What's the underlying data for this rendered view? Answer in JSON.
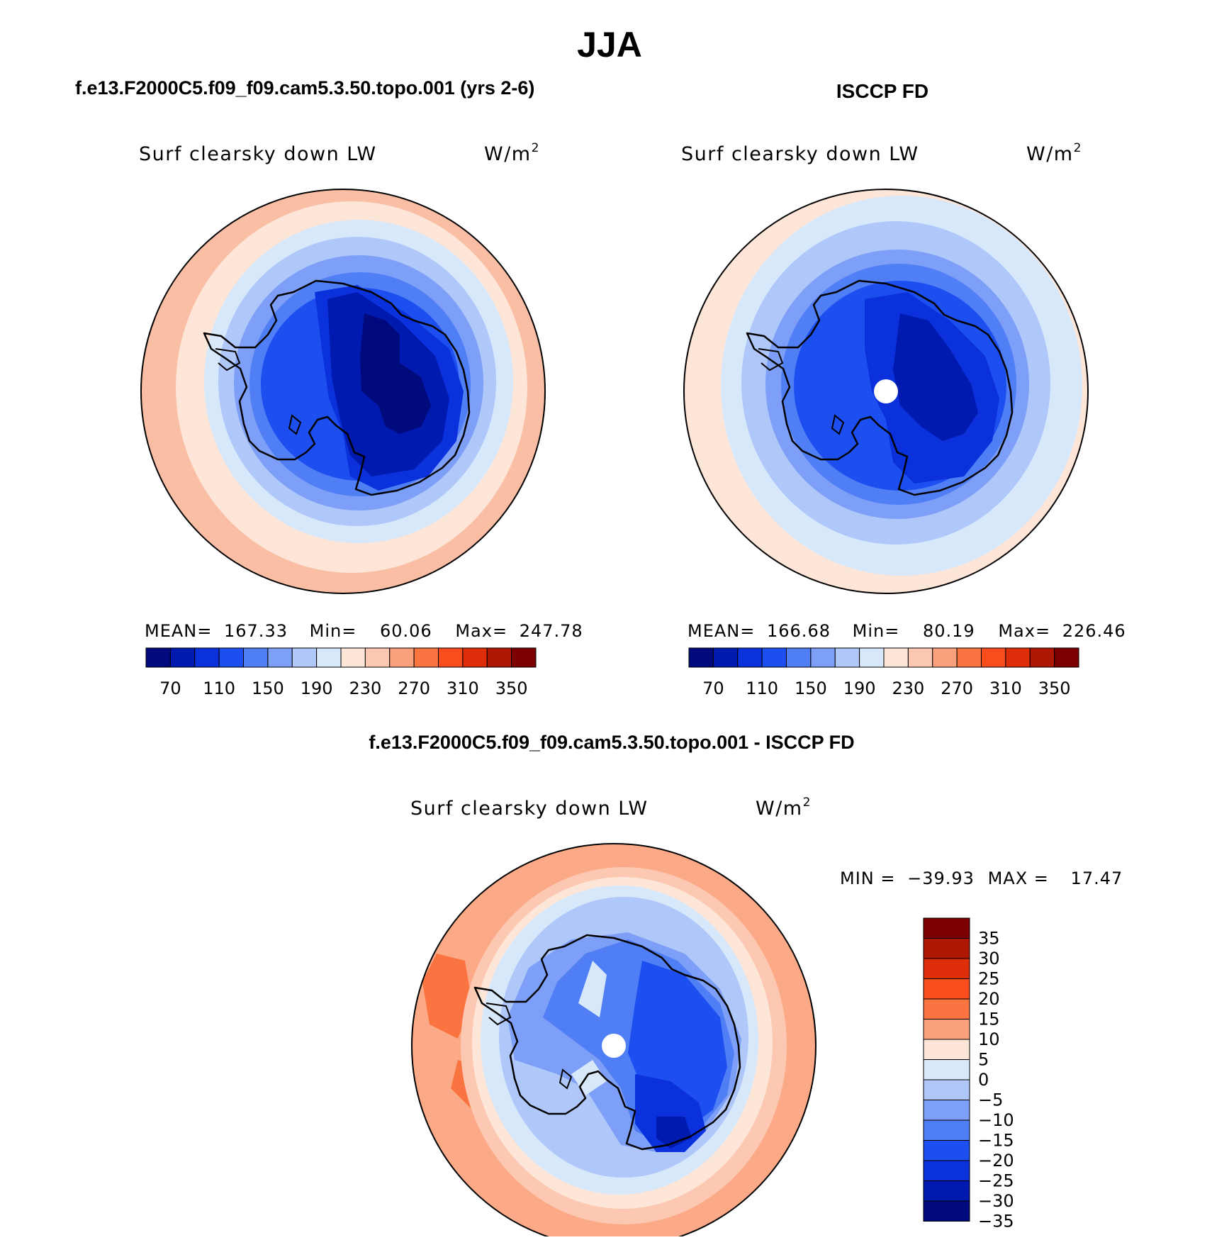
{
  "main_title": "JJA",
  "panels": [
    {
      "case_title": "f.e13.F2000C5.f09_f09.cam5.3.50.topo.001 (yrs 2-6)",
      "var_label": "Surf clearsky down LW",
      "units_base": "W/m",
      "units_exp": "2",
      "stats": {
        "mean_label": "MEAN=",
        "mean": "167.33",
        "min_label": "Min=",
        "min": "60.06",
        "max_label": "Max=",
        "max": "247.78"
      }
    },
    {
      "case_title": "ISCCP FD",
      "var_label": "Surf clearsky down LW",
      "units_base": "W/m",
      "units_exp": "2",
      "stats": {
        "mean_label": "MEAN=",
        "mean": "166.68",
        "min_label": "Min=",
        "min": "80.19",
        "max_label": "Max=",
        "max": "226.46"
      }
    },
    {
      "case_title": "f.e13.F2000C5.f09_f09.cam5.3.50.topo.001 - ISCCP FD",
      "var_label": "Surf clearsky down LW",
      "units_base": "W/m",
      "units_exp": "2",
      "stats": {
        "min_label": "MIN =",
        "min": "−39.93",
        "max_label": "MAX =",
        "max": "17.47"
      }
    }
  ],
  "colorbar_abs": {
    "colors": [
      "#000a7d",
      "#0019ae",
      "#0a31db",
      "#1d4ff0",
      "#4f7ef5",
      "#7e9ff7",
      "#b0c7f9",
      "#d8e8fb",
      "#fde5d8",
      "#fcc8b1",
      "#fba07c",
      "#f97441",
      "#fa4d1d",
      "#dd2d09",
      "#ad1703",
      "#7c0002"
    ],
    "labels": [
      "70",
      "110",
      "150",
      "190",
      "230",
      "270",
      "310",
      "350"
    ]
  },
  "colorbar_diff": {
    "colors": [
      "#7c0002",
      "#ad1703",
      "#dd2d09",
      "#fa4d1d",
      "#f97441",
      "#fba07c",
      "#fde5d8",
      "#d8e8fb",
      "#b0c7f9",
      "#7e9ff7",
      "#4f7ef5",
      "#1d4ff0",
      "#0a31db",
      "#0019ae",
      "#000a7d"
    ],
    "labels": [
      "35",
      "30",
      "25",
      "20",
      "15",
      "10",
      "5",
      "0",
      "−5",
      "−10",
      "−15",
      "−20",
      "−25",
      "−30",
      "−35"
    ]
  }
}
